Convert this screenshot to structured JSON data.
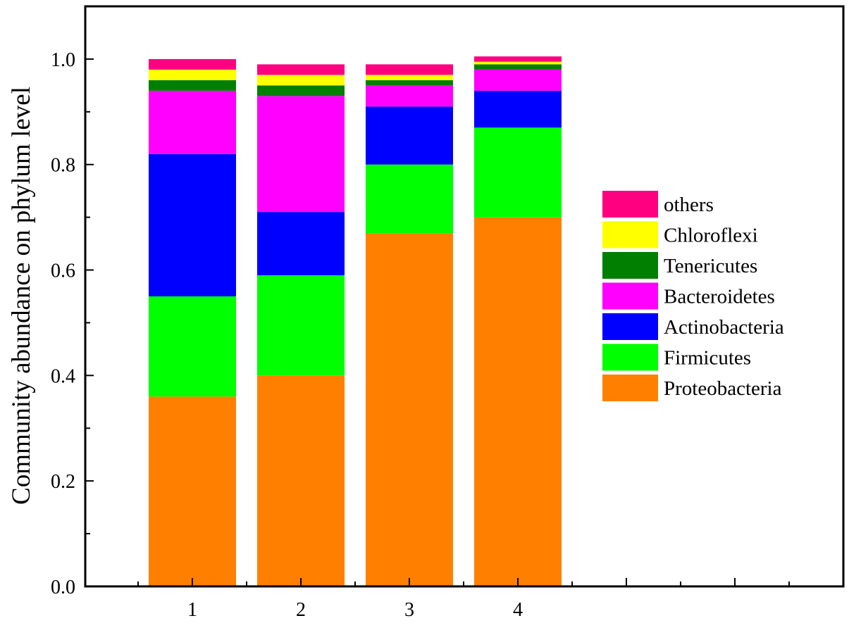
{
  "chart_data": {
    "type": "bar",
    "stacked": true,
    "categories": [
      "1",
      "2",
      "3",
      "4"
    ],
    "ylabel": "Community abundance on phylum level",
    "xlabel": "",
    "ylim": [
      0,
      1.1
    ],
    "yticks": [
      0.0,
      0.2,
      0.4,
      0.6,
      0.8,
      1.0
    ],
    "ytick_labels": [
      "0.0",
      "0.2",
      "0.4",
      "0.6",
      "0.8",
      "1.0"
    ],
    "legend_position": "right",
    "grid": false,
    "series": [
      {
        "name": "Proteobacteria",
        "color": "#ff8000",
        "values": [
          0.36,
          0.4,
          0.67,
          0.7
        ]
      },
      {
        "name": "Firmicutes",
        "color": "#00ff00",
        "values": [
          0.19,
          0.19,
          0.13,
          0.17
        ]
      },
      {
        "name": "Actinobacteria",
        "color": "#0000ff",
        "values": [
          0.27,
          0.12,
          0.11,
          0.07
        ]
      },
      {
        "name": "Bacteroidetes",
        "color": "#ff00ff",
        "values": [
          0.12,
          0.22,
          0.04,
          0.04
        ]
      },
      {
        "name": "Tenericutes",
        "color": "#007f00",
        "values": [
          0.02,
          0.02,
          0.01,
          0.01
        ]
      },
      {
        "name": "Chloroflexi",
        "color": "#ffff00",
        "values": [
          0.02,
          0.02,
          0.01,
          0.005
        ]
      },
      {
        "name": "others",
        "color": "#ff0080",
        "values": [
          0.02,
          0.02,
          0.02,
          0.01
        ]
      }
    ]
  }
}
